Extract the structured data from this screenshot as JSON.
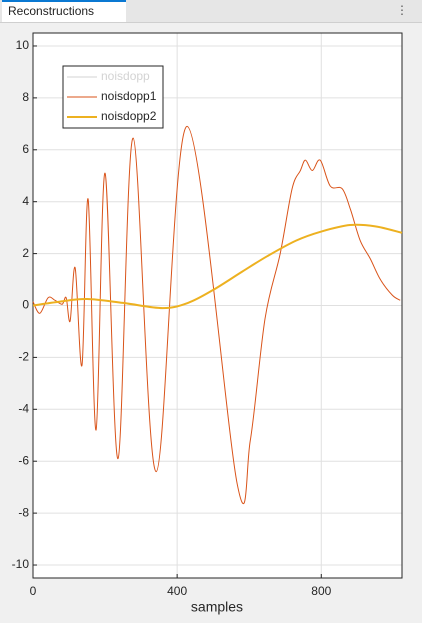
{
  "tab": {
    "title": "Reconstructions"
  },
  "chart_data": {
    "type": "line",
    "xlabel": "samples",
    "xlim": [
      0,
      1024
    ],
    "xticks": [
      0,
      400,
      800
    ],
    "ylim": [
      -10.5,
      10.5
    ],
    "yticks": [
      -10,
      -8,
      -6,
      -4,
      -2,
      0,
      2,
      4,
      6,
      8,
      10
    ],
    "grid": true,
    "legend": "top-left",
    "series": [
      {
        "name": "noisdopp",
        "color": "#d3d3d3",
        "visible": false
      },
      {
        "name": "noisdopp1",
        "color": "#d95319",
        "width": 1,
        "x": [
          0,
          19,
          42,
          61,
          81,
          92,
          103,
          117,
          136,
          153,
          175,
          200,
          236,
          278,
          342,
          428,
          567,
          603,
          644,
          686,
          719,
          742,
          756,
          775,
          797,
          825,
          858,
          881,
          908,
          936,
          964,
          997,
          1019
        ],
        "values": [
          0.15,
          -0.3,
          0.3,
          0.2,
          0.05,
          0.3,
          -0.6,
          1.45,
          -2.3,
          4.1,
          -4.8,
          5.1,
          -5.9,
          6.45,
          -6.4,
          6.9,
          -6.9,
          -5.2,
          -0.5,
          2,
          4.5,
          5.2,
          5.6,
          5.2,
          5.6,
          4.6,
          4.5,
          3.7,
          2.5,
          1.8,
          1.0,
          0.4,
          0.2
        ]
      },
      {
        "name": "noisdopp2",
        "color": "#edb120",
        "width": 2,
        "x": [
          0,
          75,
          150,
          250,
          360,
          430,
          500,
          580,
          650,
          730,
          800,
          880,
          950,
          1024
        ],
        "values": [
          0,
          0.15,
          0.25,
          0.1,
          -0.1,
          0.1,
          0.6,
          1.3,
          1.9,
          2.5,
          2.85,
          3.1,
          3.05,
          2.8
        ]
      }
    ]
  }
}
